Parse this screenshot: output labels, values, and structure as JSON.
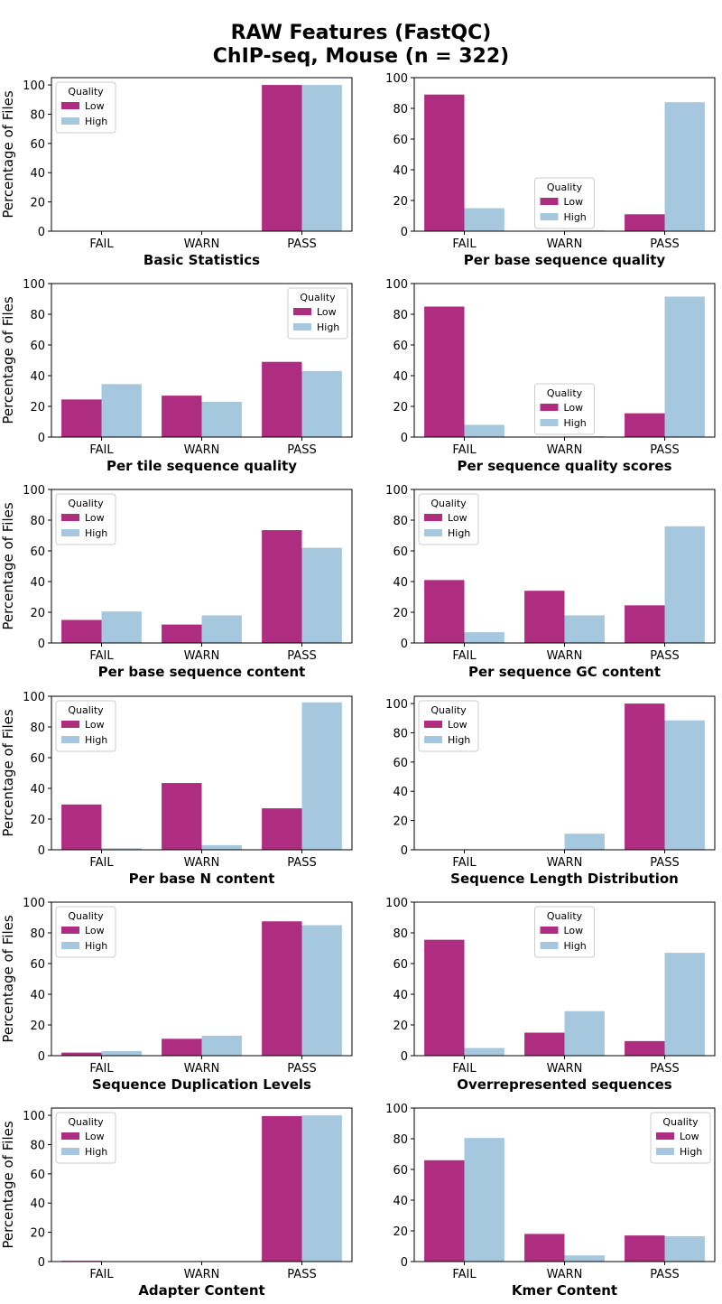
{
  "title_lines": [
    "RAW Features (FastQC)",
    "ChIP-seq, Mouse (n = 322)"
  ],
  "ylabel": "Percentage of Files",
  "legend_title": "Quality",
  "colors": {
    "Low": "#ae2d81",
    "High": "#a5c8de"
  },
  "chart_data": [
    {
      "type": "bar",
      "xlabel": "Basic Statistics",
      "categories": [
        "FAIL",
        "WARN",
        "PASS"
      ],
      "ylim": [
        0,
        105
      ],
      "yticks": [
        0,
        20,
        40,
        60,
        80,
        100
      ],
      "legend": "upper-left",
      "series": [
        {
          "name": "Low",
          "values": [
            0,
            0,
            100
          ]
        },
        {
          "name": "High",
          "values": [
            0,
            0,
            100
          ]
        }
      ]
    },
    {
      "type": "bar",
      "xlabel": "Per base sequence quality",
      "categories": [
        "FAIL",
        "WARN",
        "PASS"
      ],
      "ylim": [
        0,
        100
      ],
      "yticks": [
        0,
        20,
        40,
        60,
        80,
        100
      ],
      "legend": "center-low",
      "series": [
        {
          "name": "Low",
          "values": [
            89,
            0,
            11
          ]
        },
        {
          "name": "High",
          "values": [
            15,
            0.5,
            84
          ]
        }
      ]
    },
    {
      "type": "bar",
      "xlabel": "Per tile sequence quality",
      "categories": [
        "FAIL",
        "WARN",
        "PASS"
      ],
      "ylim": [
        0,
        100
      ],
      "yticks": [
        0,
        20,
        40,
        60,
        80,
        100
      ],
      "legend": "upper-right",
      "series": [
        {
          "name": "Low",
          "values": [
            24.5,
            27,
            49
          ]
        },
        {
          "name": "High",
          "values": [
            34.5,
            23,
            43
          ]
        }
      ]
    },
    {
      "type": "bar",
      "xlabel": "Per sequence quality scores",
      "categories": [
        "FAIL",
        "WARN",
        "PASS"
      ],
      "ylim": [
        0,
        100
      ],
      "yticks": [
        0,
        20,
        40,
        60,
        80,
        100
      ],
      "legend": "center-low",
      "series": [
        {
          "name": "Low",
          "values": [
            85,
            0,
            15.5
          ]
        },
        {
          "name": "High",
          "values": [
            8,
            0.5,
            91.5
          ]
        }
      ]
    },
    {
      "type": "bar",
      "xlabel": "Per base sequence content",
      "categories": [
        "FAIL",
        "WARN",
        "PASS"
      ],
      "ylim": [
        0,
        100
      ],
      "yticks": [
        0,
        20,
        40,
        60,
        80,
        100
      ],
      "legend": "upper-left",
      "series": [
        {
          "name": "Low",
          "values": [
            15,
            12,
            73.5
          ]
        },
        {
          "name": "High",
          "values": [
            20.5,
            18,
            62
          ]
        }
      ]
    },
    {
      "type": "bar",
      "xlabel": "Per sequence GC content",
      "categories": [
        "FAIL",
        "WARN",
        "PASS"
      ],
      "ylim": [
        0,
        100
      ],
      "yticks": [
        0,
        20,
        40,
        60,
        80,
        100
      ],
      "legend": "upper-left",
      "series": [
        {
          "name": "Low",
          "values": [
            41,
            34,
            24.5
          ]
        },
        {
          "name": "High",
          "values": [
            7,
            18,
            76
          ]
        }
      ]
    },
    {
      "type": "bar",
      "xlabel": "Per base N content",
      "categories": [
        "FAIL",
        "WARN",
        "PASS"
      ],
      "ylim": [
        0,
        100
      ],
      "yticks": [
        0,
        20,
        40,
        60,
        80,
        100
      ],
      "legend": "upper-left",
      "series": [
        {
          "name": "Low",
          "values": [
            29.5,
            43.5,
            27
          ]
        },
        {
          "name": "High",
          "values": [
            1,
            3,
            96
          ]
        }
      ]
    },
    {
      "type": "bar",
      "xlabel": "Sequence Length Distribution",
      "categories": [
        "FAIL",
        "WARN",
        "PASS"
      ],
      "ylim": [
        0,
        105
      ],
      "yticks": [
        0,
        20,
        40,
        60,
        80,
        100
      ],
      "legend": "upper-left",
      "series": [
        {
          "name": "Low",
          "values": [
            0,
            0,
            100
          ]
        },
        {
          "name": "High",
          "values": [
            0,
            11,
            88.5
          ]
        }
      ]
    },
    {
      "type": "bar",
      "xlabel": "Sequence Duplication Levels",
      "categories": [
        "FAIL",
        "WARN",
        "PASS"
      ],
      "ylim": [
        0,
        100
      ],
      "yticks": [
        0,
        20,
        40,
        60,
        80,
        100
      ],
      "legend": "upper-left",
      "series": [
        {
          "name": "Low",
          "values": [
            2,
            11,
            87.5
          ]
        },
        {
          "name": "High",
          "values": [
            3,
            13,
            85
          ]
        }
      ]
    },
    {
      "type": "bar",
      "xlabel": "Overrepresented sequences",
      "categories": [
        "FAIL",
        "WARN",
        "PASS"
      ],
      "ylim": [
        0,
        100
      ],
      "yticks": [
        0,
        20,
        40,
        60,
        80,
        100
      ],
      "legend": "upper-center",
      "series": [
        {
          "name": "Low",
          "values": [
            75.5,
            15,
            9.5
          ]
        },
        {
          "name": "High",
          "values": [
            5,
            29,
            67
          ]
        }
      ]
    },
    {
      "type": "bar",
      "xlabel": "Adapter Content",
      "categories": [
        "FAIL",
        "WARN",
        "PASS"
      ],
      "ylim": [
        0,
        105
      ],
      "yticks": [
        0,
        20,
        40,
        60,
        80,
        100
      ],
      "legend": "upper-left",
      "series": [
        {
          "name": "Low",
          "values": [
            0.5,
            0,
            99.5
          ]
        },
        {
          "name": "High",
          "values": [
            0,
            0,
            100
          ]
        }
      ]
    },
    {
      "type": "bar",
      "xlabel": "Kmer Content",
      "categories": [
        "FAIL",
        "WARN",
        "PASS"
      ],
      "ylim": [
        0,
        100
      ],
      "yticks": [
        0,
        20,
        40,
        60,
        80,
        100
      ],
      "legend": "upper-right",
      "series": [
        {
          "name": "Low",
          "values": [
            66,
            18,
            17
          ]
        },
        {
          "name": "High",
          "values": [
            80.5,
            4,
            16.5
          ]
        }
      ]
    }
  ]
}
